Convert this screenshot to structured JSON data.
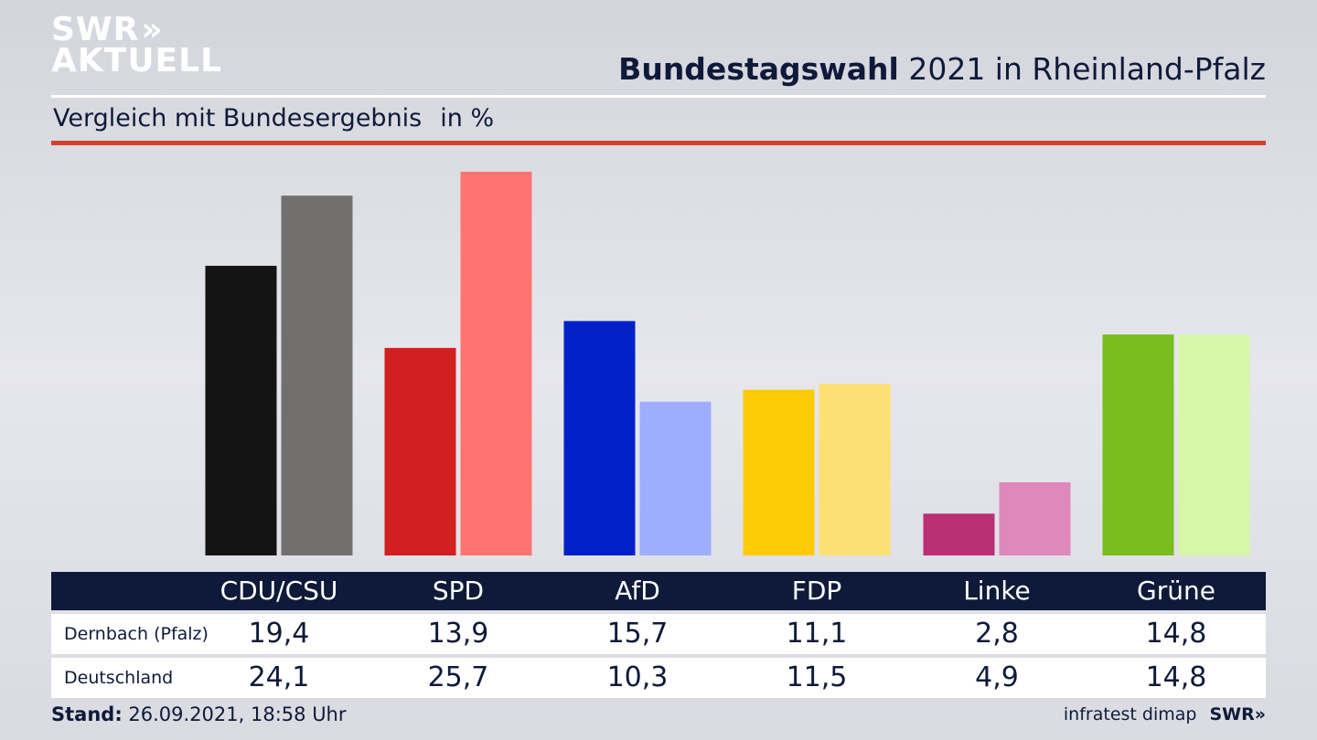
{
  "brand": {
    "line1": "SWR",
    "line1_chevrons": "»",
    "line2": "AKTUELL"
  },
  "header": {
    "title_bold": "Bundestagswahl",
    "title_rest": "2021 in Rheinland-Pfalz",
    "subtitle": "Vergleich mit Bundesergebnis",
    "unit": "in %"
  },
  "chart_data": {
    "type": "bar",
    "categories": [
      "CDU/CSU",
      "SPD",
      "AfD",
      "FDP",
      "Linke",
      "Grüne"
    ],
    "series": [
      {
        "name": "Dernbach (Pfalz)",
        "values": [
          19.4,
          13.9,
          15.7,
          11.1,
          2.8,
          14.8
        ],
        "colors": [
          "#141414",
          "#d21f1f",
          "#0021c8",
          "#fdcb06",
          "#bb2f75",
          "#79bd1e"
        ]
      },
      {
        "name": "Deutschland",
        "values": [
          24.1,
          25.7,
          10.3,
          11.5,
          4.9,
          14.8
        ],
        "colors": [
          "#72706e",
          "#ff7470",
          "#9eadff",
          "#fde073",
          "#df88bb",
          "#d6f6a8"
        ]
      }
    ],
    "value_labels": [
      [
        "19,4",
        "13,9",
        "15,7",
        "11,1",
        "2,8",
        "14,8"
      ],
      [
        "24,1",
        "25,7",
        "10,3",
        "11,5",
        "4,9",
        "14,8"
      ]
    ],
    "ylim": [
      0,
      25.7
    ]
  },
  "footer": {
    "stand_label": "Stand:",
    "stand_value": "26.09.2021, 18:58 Uhr",
    "source": "infratest dimap",
    "source_logo": "SWR»"
  },
  "colors": {
    "navy": "#0f1a3a",
    "accent_red": "#d4432e"
  }
}
